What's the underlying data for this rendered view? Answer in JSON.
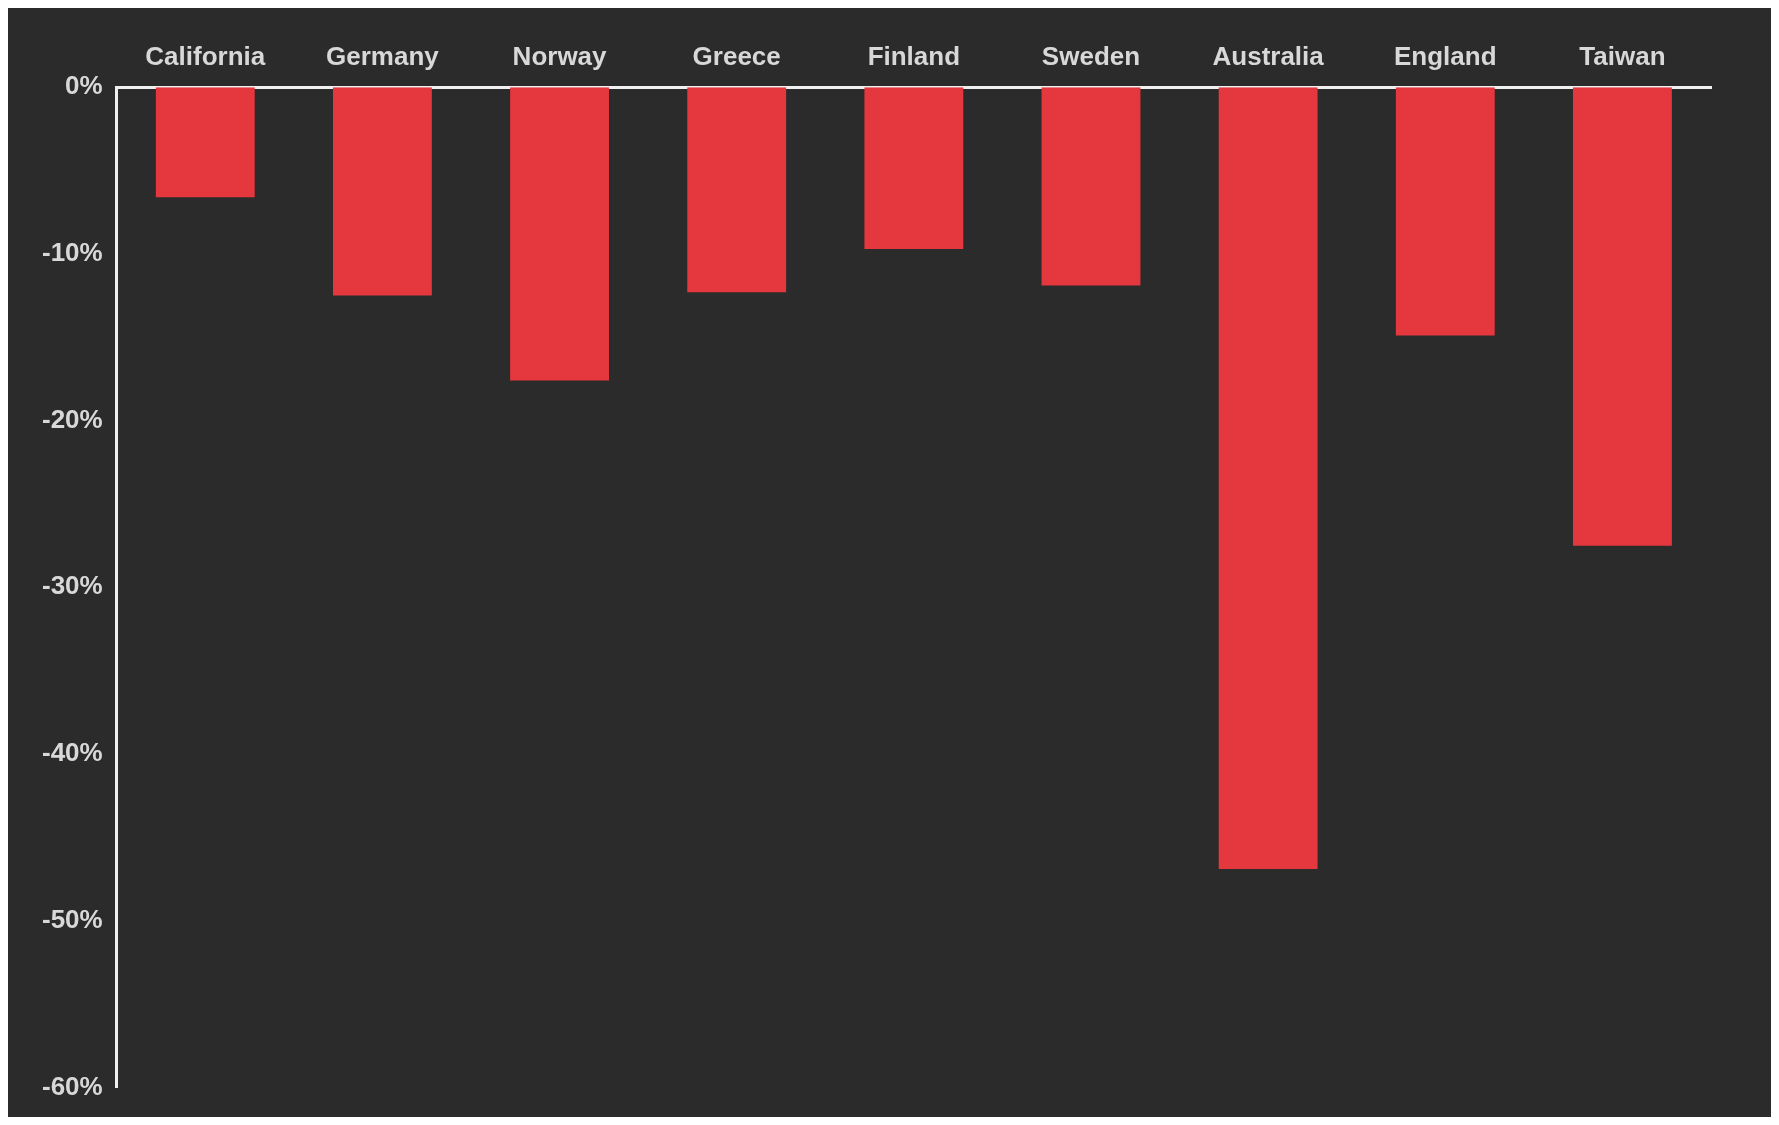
{
  "chart_data": {
    "type": "bar",
    "categories": [
      "California",
      "Germany",
      "Norway",
      "Greece",
      "Finland",
      "Sweden",
      "Australia",
      "England",
      "Taiwan"
    ],
    "values": [
      -6.6,
      -12.5,
      -17.6,
      -12.3,
      -9.7,
      -11.9,
      -46.9,
      -14.9,
      -27.5
    ],
    "color": "#e5383e",
    "ylim": [
      -60,
      0
    ],
    "yticks": [
      {
        "value": 0,
        "label": "0%"
      },
      {
        "value": -10,
        "label": "-10%"
      },
      {
        "value": -20,
        "label": "-20%"
      },
      {
        "value": -30,
        "label": "-30%"
      },
      {
        "value": -40,
        "label": "-40%"
      },
      {
        "value": -50,
        "label": "-50%"
      },
      {
        "value": -60,
        "label": "-60%"
      }
    ],
    "grid": false,
    "legend": false
  }
}
